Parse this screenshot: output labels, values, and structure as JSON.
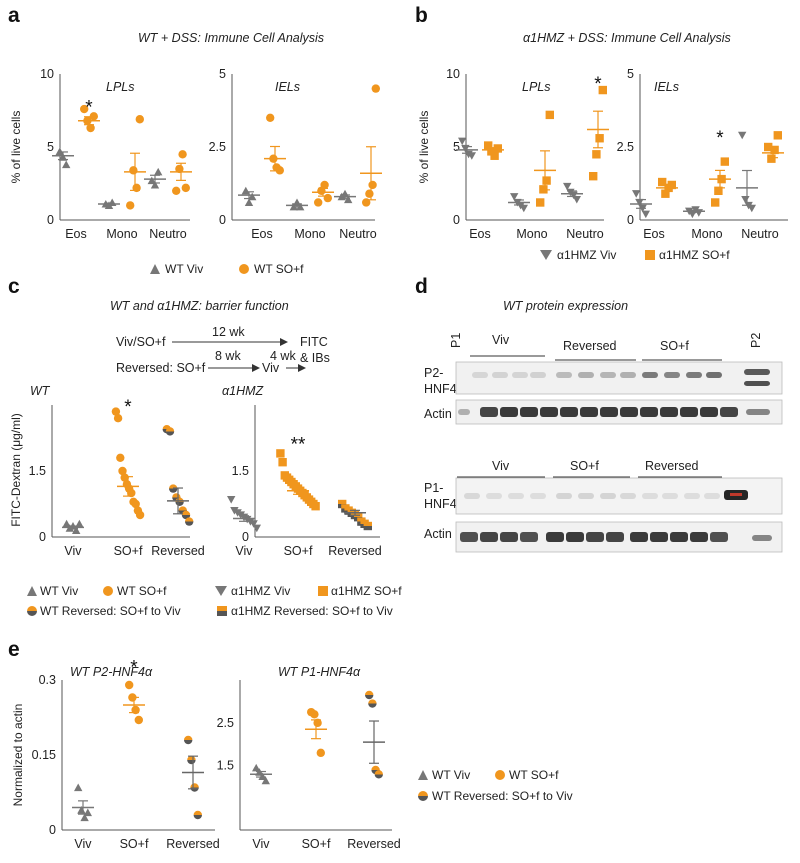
{
  "colors": {
    "wt": "#777777",
    "mut": "#f0961e",
    "revGrey": "#666666",
    "revOrange": "#f0961e"
  },
  "panels": {
    "a": {
      "label": "a",
      "title": "WT + DSS: Immune Cell Analysis"
    },
    "b": {
      "label": "b",
      "title": "α1HMZ + DSS: Immune Cell Analysis"
    },
    "c": {
      "label": "c",
      "title": "WT and α1HMZ: barrier function"
    },
    "d": {
      "label": "d",
      "title": "WT  protein expression"
    },
    "e": {
      "label": "e"
    }
  },
  "schematic": {
    "line1": "Viv/SO+f",
    "wk12": "12 wk",
    "fitc": "FITC",
    "ibs": "& IBs",
    "line2": "Reversed: SO+f",
    "wk8": "8 wk",
    "viv": "Viv",
    "wk4": "4 wk"
  },
  "legends": {
    "a": {
      "wt": "WT Viv",
      "so": "WT SO+f"
    },
    "b": {
      "wt": "α1HMZ Viv",
      "so": "α1HMZ SO+f"
    },
    "c": {
      "wt": "WT Viv",
      "so": "WT SO+f",
      "rev": "WT Reversed: SO+f to Viv",
      "hwt": "α1HMZ Viv",
      "hso": "α1HMZ SO+f",
      "hrev": "α1HMZ Reversed: SO+f to Viv"
    },
    "e": {
      "wt": "WT Viv",
      "so": "WT SO+f",
      "rev": "WT Reversed: SO+f to Viv"
    }
  },
  "blot": {
    "p1": "P1",
    "p2": "P2",
    "top": {
      "viv": "Viv",
      "rev": "Reversed",
      "so": "SO+f",
      "band": "P2-\nHNF4α",
      "actin": "Actin"
    },
    "bottom": {
      "viv": "Viv",
      "so": "SO+f",
      "rev": "Reversed",
      "band": "P1-\nHNF4α",
      "actin": "Actin"
    }
  },
  "chart_data": [
    {
      "id": "a-LPL",
      "type": "scatter",
      "subtitle": "LPLs",
      "ylabel": "% of live cells",
      "ylim": [
        0,
        10
      ],
      "yticks": [
        "0",
        "5",
        "10"
      ],
      "categories": [
        "Eos",
        "Mono",
        "Neutro"
      ],
      "series": [
        {
          "name": "WT Viv",
          "group": "wt",
          "marker": "triangle-up",
          "values": [
            [
              4.7,
              4.3,
              3.8
            ],
            [
              1.1,
              1.0,
              1.2
            ],
            [
              2.7,
              2.4,
              3.3
            ]
          ],
          "mean": [
            4.4,
            1.1,
            2.8
          ]
        },
        {
          "name": "WT SO+f",
          "group": "so",
          "marker": "circle",
          "values": [
            [
              7.6,
              6.8,
              6.3,
              7.1
            ],
            [
              1.0,
              3.4,
              2.2,
              6.9
            ],
            [
              2.0,
              3.5,
              4.5,
              2.2
            ]
          ],
          "mean": [
            6.8,
            3.3,
            3.3
          ]
        }
      ],
      "stars": [
        {
          "category": 0,
          "y": 7.7,
          "text": "*"
        }
      ]
    },
    {
      "id": "a-IEL",
      "type": "scatter",
      "subtitle": "IELs",
      "ylim": [
        0,
        5
      ],
      "yticks": [
        "0",
        "2.5",
        "5"
      ],
      "categories": [
        "Eos",
        "Mono",
        "Neutro"
      ],
      "series": [
        {
          "name": "WT Viv",
          "group": "wt",
          "marker": "triangle-up",
          "values": [
            [
              1.0,
              0.6,
              0.8
            ],
            [
              0.45,
              0.6,
              0.45
            ],
            [
              0.8,
              0.9,
              0.7
            ]
          ],
          "mean": [
            0.85,
            0.5,
            0.8
          ]
        },
        {
          "name": "WT SO+f",
          "group": "so",
          "marker": "circle",
          "values": [
            [
              3.5,
              2.1,
              1.8,
              1.7
            ],
            [
              0.6,
              1.0,
              1.2,
              0.75
            ],
            [
              0.6,
              0.9,
              1.2,
              4.5
            ]
          ],
          "mean": [
            2.1,
            0.95,
            1.6
          ]
        }
      ],
      "stars": []
    },
    {
      "id": "b-LPL",
      "type": "scatter",
      "subtitle": "LPLs",
      "ylabel": "% of live cells",
      "ylim": [
        0,
        10
      ],
      "yticks": [
        "0",
        "5",
        "10"
      ],
      "categories": [
        "Eos",
        "Mono",
        "Neutro"
      ],
      "series": [
        {
          "name": "α1HMZ Viv",
          "group": "wt",
          "marker": "triangle-down",
          "values": [
            [
              5.4,
              4.9,
              4.5,
              4.4
            ],
            [
              1.6,
              1.2,
              1.0,
              0.8
            ],
            [
              2.3,
              1.9,
              1.7,
              1.4
            ]
          ],
          "mean": [
            4.8,
            1.2,
            1.8
          ]
        },
        {
          "name": "α1HMZ SO+f",
          "group": "so",
          "marker": "square",
          "values": [
            [
              5.1,
              4.7,
              4.4,
              4.9
            ],
            [
              1.2,
              2.1,
              2.7,
              7.2
            ],
            [
              3.0,
              4.5,
              5.6,
              8.9
            ]
          ],
          "mean": [
            4.8,
            3.4,
            6.2
          ]
        }
      ],
      "stars": [
        {
          "category": 2,
          "y": 9.3,
          "text": "*"
        }
      ]
    },
    {
      "id": "b-IEL",
      "type": "scatter",
      "subtitle": "IELs",
      "ylim": [
        0,
        5
      ],
      "yticks": [
        "0",
        "2.5",
        "5"
      ],
      "categories": [
        "Eos",
        "Mono",
        "Neutro"
      ],
      "series": [
        {
          "name": "α1HMZ Viv",
          "group": "wt",
          "marker": "triangle-down",
          "values": [
            [
              0.9,
              0.6,
              0.4,
              0.2
            ],
            [
              0.3,
              0.2,
              0.35,
              0.25
            ],
            [
              2.9,
              0.7,
              0.5,
              0.4
            ]
          ],
          "mean": [
            0.55,
            0.3,
            1.1
          ]
        },
        {
          "name": "α1HMZ SO+f",
          "group": "so",
          "marker": "square",
          "values": [
            [
              1.3,
              0.9,
              1.1,
              1.2
            ],
            [
              0.6,
              1.0,
              1.4,
              2.0
            ],
            [
              2.5,
              2.1,
              2.4,
              2.9
            ]
          ],
          "mean": [
            1.1,
            1.4,
            2.3
          ]
        }
      ],
      "stars": [
        {
          "category": 1,
          "y": 2.8,
          "text": "*"
        }
      ]
    },
    {
      "id": "c-WT",
      "type": "scatter",
      "subtitle": "WT",
      "ylabel": "FITC-Dextran (μg/ml)",
      "ylim": [
        0,
        3.0
      ],
      "yticks": [
        [
          "0",
          0
        ],
        [
          "1.5",
          1.5
        ]
      ],
      "categories": [
        "Viv",
        "SO+f",
        "Reversed"
      ],
      "series": [
        {
          "name": "WT Viv",
          "group": "wt",
          "marker": "triangle-up",
          "values": [
            [
              0.3,
              0.2,
              0.25,
              0.15,
              0.3
            ]
          ],
          "mean": [
            0.22
          ],
          "at": 0
        },
        {
          "name": "WT SO+f",
          "group": "so",
          "marker": "circle",
          "values": [
            [
              2.85,
              2.7,
              1.8,
              1.5,
              1.35,
              1.2,
              1.1,
              1.0,
              0.8,
              0.75,
              0.6,
              0.5
            ]
          ],
          "mean": [
            1.15
          ],
          "at": 1
        },
        {
          "name": "WT Reversed: SO+f to Viv",
          "group": "rev",
          "marker": "circle-split",
          "values": [
            [
              2.45,
              2.4,
              1.1,
              0.9,
              0.8,
              0.6,
              0.5,
              0.35
            ]
          ],
          "mean": [
            0.82
          ],
          "at": 2
        }
      ],
      "stars": [
        {
          "category": 1,
          "y": 2.95,
          "text": "*"
        }
      ]
    },
    {
      "id": "c-HMZ",
      "type": "scatter",
      "subtitle": "α1HMZ",
      "ylim": [
        0,
        3.0
      ],
      "yticks": [
        [
          "0",
          0
        ],
        [
          "1.5",
          1.5
        ]
      ],
      "categories": [
        "Viv",
        "SO+f",
        "Reversed"
      ],
      "series": [
        {
          "name": "α1HMZ Viv",
          "group": "wt",
          "marker": "triangle-down",
          "values": [
            [
              0.85,
              0.6,
              0.55,
              0.5,
              0.45,
              0.4,
              0.35,
              0.3,
              0.2
            ]
          ],
          "mean": [
            0.42
          ],
          "at": 0
        },
        {
          "name": "α1HMZ SO+f",
          "group": "so",
          "marker": "square",
          "values": [
            [
              1.9,
              1.7,
              1.4,
              1.35,
              1.3,
              1.25,
              1.2,
              1.15,
              1.1,
              1.05,
              1.0,
              0.95,
              0.9,
              0.85,
              0.8,
              0.75,
              0.7
            ]
          ],
          "mean": [
            1.05
          ],
          "at": 1
        },
        {
          "name": "α1HMZ Reversed: SO+f to Viv",
          "group": "rev",
          "marker": "square-split",
          "values": [
            [
              0.75,
              0.65,
              0.6,
              0.55,
              0.5,
              0.45,
              0.35,
              0.3,
              0.25
            ]
          ],
          "mean": [
            0.55
          ],
          "at": 2
        }
      ],
      "stars": [
        {
          "category": 1,
          "y": 2.1,
          "text": "**"
        }
      ]
    },
    {
      "id": "e-P2",
      "type": "scatter",
      "subtitle": "WT P2-HNF4α",
      "ylabel": "Normalized to actin",
      "ylim": [
        0,
        0.3
      ],
      "yticks": [
        [
          "0",
          0
        ],
        [
          "0.15",
          0.15
        ],
        [
          "0.3",
          0.3
        ]
      ],
      "categories": [
        "Viv",
        "SO+f",
        "Reversed"
      ],
      "series": [
        {
          "name": "WT Viv",
          "group": "wt",
          "marker": "triangle-up",
          "values": [
            [
              0.085,
              0.04,
              0.025,
              0.035
            ]
          ],
          "mean": [
            0.045
          ],
          "at": 0
        },
        {
          "name": "WT SO+f",
          "group": "so",
          "marker": "circle",
          "values": [
            [
              0.29,
              0.265,
              0.24,
              0.22
            ]
          ],
          "mean": [
            0.25
          ],
          "at": 1
        },
        {
          "name": "WT Reversed: SO+f to Viv",
          "group": "rev",
          "marker": "circle-split",
          "values": [
            [
              0.18,
              0.14,
              0.085,
              0.03
            ]
          ],
          "mean": [
            0.115
          ],
          "at": 2
        }
      ],
      "stars": [
        {
          "category": 1,
          "y": 0.325,
          "text": "*"
        }
      ]
    },
    {
      "id": "e-P1",
      "type": "scatter",
      "subtitle": "WT P1-HNF4α",
      "ylim": [
        0,
        3.5
      ],
      "yticks": [
        [
          "1.5",
          1.5
        ],
        [
          "2.5",
          2.5
        ]
      ],
      "categories": [
        "Viv",
        "SO+f",
        "Reversed"
      ],
      "series": [
        {
          "name": "WT Viv",
          "group": "wt",
          "marker": "triangle-up",
          "values": [
            [
              1.45,
              1.35,
              1.25,
              1.15
            ]
          ],
          "mean": [
            1.3
          ],
          "at": 0
        },
        {
          "name": "WT SO+f",
          "group": "so",
          "marker": "circle",
          "values": [
            [
              2.75,
              2.7,
              2.5,
              1.8
            ]
          ],
          "mean": [
            2.35
          ],
          "at": 1
        },
        {
          "name": "WT Reversed: SO+f to Viv",
          "group": "rev",
          "marker": "circle-split",
          "values": [
            [
              3.15,
              2.95,
              1.4,
              1.3
            ]
          ],
          "mean": [
            2.05
          ],
          "at": 2
        }
      ],
      "stars": []
    }
  ]
}
